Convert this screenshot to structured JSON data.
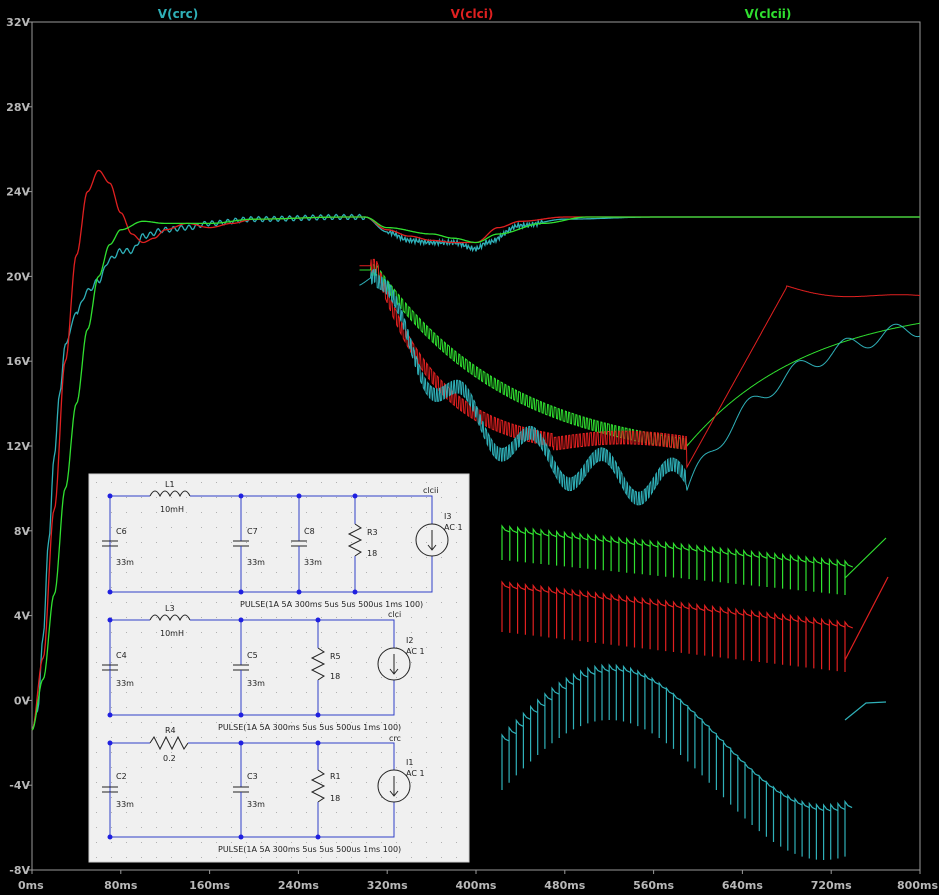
{
  "chart_data": {
    "type": "line",
    "title": "",
    "xlabel": "",
    "ylabel": "",
    "xlim": [
      0,
      800
    ],
    "ylim": [
      -8,
      32
    ],
    "x_unit": "ms",
    "y_unit": "V",
    "x_ticks": [
      "0ms",
      "80ms",
      "160ms",
      "240ms",
      "320ms",
      "400ms",
      "480ms",
      "560ms",
      "640ms",
      "720ms",
      "800ms"
    ],
    "y_ticks": [
      "32V",
      "28V",
      "24V",
      "20V",
      "16V",
      "12V",
      "8V",
      "4V",
      "0V",
      "-4V",
      "-8V"
    ],
    "legend": [
      {
        "name": "V(crc)",
        "color": "#2fb0b8"
      },
      {
        "name": "V(clci)",
        "color": "#e02020"
      },
      {
        "name": "V(clcii)",
        "color": "#30e030"
      }
    ],
    "series": [
      {
        "name": "V(crc)",
        "color": "#2fb0b8",
        "points": [
          [
            0,
            -1.4
          ],
          [
            5,
            -0.5
          ],
          [
            10,
            3
          ],
          [
            15,
            7.5
          ],
          [
            20,
            11.5
          ],
          [
            25,
            14.5
          ],
          [
            30,
            16.8
          ],
          [
            40,
            18.3
          ],
          [
            50,
            19.3
          ],
          [
            60,
            19.8
          ],
          [
            70,
            20.8
          ],
          [
            80,
            21.2
          ],
          [
            90,
            21.2
          ],
          [
            100,
            21.9
          ],
          [
            120,
            22.2
          ],
          [
            140,
            22.3
          ],
          [
            160,
            22.5
          ],
          [
            200,
            22.7
          ],
          [
            280,
            22.8
          ],
          [
            300,
            22.8
          ],
          [
            320,
            22.1
          ],
          [
            340,
            21.7
          ],
          [
            360,
            21.6
          ],
          [
            380,
            21.6
          ],
          [
            400,
            21.3
          ],
          [
            410,
            21.6
          ],
          [
            440,
            22.4
          ],
          [
            480,
            22.7
          ],
          [
            560,
            22.8
          ],
          [
            700,
            22.8
          ],
          [
            800,
            22.8
          ]
        ]
      },
      {
        "name": "V(clci)",
        "color": "#e02020",
        "points": [
          [
            0,
            -1.4
          ],
          [
            10,
            2
          ],
          [
            20,
            9
          ],
          [
            30,
            16
          ],
          [
            40,
            21
          ],
          [
            50,
            24
          ],
          [
            60,
            25.0
          ],
          [
            70,
            24.4
          ],
          [
            80,
            23
          ],
          [
            90,
            22
          ],
          [
            100,
            21.6
          ],
          [
            110,
            21.8
          ],
          [
            120,
            22.2
          ],
          [
            140,
            22.5
          ],
          [
            160,
            22.3
          ],
          [
            180,
            22.5
          ],
          [
            200,
            22.7
          ],
          [
            280,
            22.8
          ],
          [
            300,
            22.8
          ],
          [
            320,
            22.2
          ],
          [
            340,
            21.9
          ],
          [
            360,
            21.7
          ],
          [
            380,
            21.6
          ],
          [
            400,
            21.6
          ],
          [
            420,
            22.3
          ],
          [
            440,
            22.6
          ],
          [
            480,
            22.8
          ],
          [
            560,
            22.8
          ],
          [
            700,
            22.8
          ],
          [
            800,
            22.8
          ]
        ]
      },
      {
        "name": "V(clcii)",
        "color": "#30e030",
        "points": [
          [
            0,
            -1.4
          ],
          [
            10,
            1
          ],
          [
            20,
            5
          ],
          [
            30,
            10
          ],
          [
            40,
            14
          ],
          [
            50,
            17.5
          ],
          [
            60,
            20
          ],
          [
            70,
            21.5
          ],
          [
            80,
            22.2
          ],
          [
            100,
            22.6
          ],
          [
            120,
            22.5
          ],
          [
            160,
            22.5
          ],
          [
            200,
            22.7
          ],
          [
            280,
            22.8
          ],
          [
            300,
            22.8
          ],
          [
            320,
            22.3
          ],
          [
            360,
            22.0
          ],
          [
            380,
            21.8
          ],
          [
            400,
            21.6
          ],
          [
            420,
            22.0
          ],
          [
            460,
            22.5
          ],
          [
            500,
            22.8
          ],
          [
            700,
            22.8
          ],
          [
            800,
            22.8
          ]
        ]
      }
    ]
  },
  "schematic": {
    "labels": {
      "l1": "L1",
      "l1_val": "10mH",
      "c6": "C6",
      "c6_val": "33m",
      "c7": "C7",
      "c7_val": "33m",
      "c8": "C8",
      "c8_val": "33m",
      "r3": "R3",
      "r3_val": "18",
      "i3": "I3",
      "i3_ac": "AC 1",
      "net_clcii": "clcii",
      "pulse1": "PULSE(1A 5A 300ms 5us 5us 500us 1ms 100)",
      "l3": "L3",
      "l3_val": "10mH",
      "c4": "C4",
      "c4_val": "33m",
      "c5": "C5",
      "c5_val": "33m",
      "r5": "R5",
      "r5_val": "18",
      "i2": "I2",
      "i2_ac": "AC 1",
      "net_clci": "clci",
      "pulse2": "PULSE(1A 5A 300ms 5us 5us 500us 1ms 100)",
      "r4": "R4",
      "r4_val": "0.2",
      "c2": "C2",
      "c2_val": "33m",
      "c3": "C3",
      "c3_val": "33m",
      "r1": "R1",
      "r1_val": "18",
      "i1": "I1",
      "i1_ac": "AC 1",
      "net_crc": "crc",
      "pulse3": "PULSE(1A 5A 300ms 5us 5us 500us 1ms 100)"
    }
  }
}
